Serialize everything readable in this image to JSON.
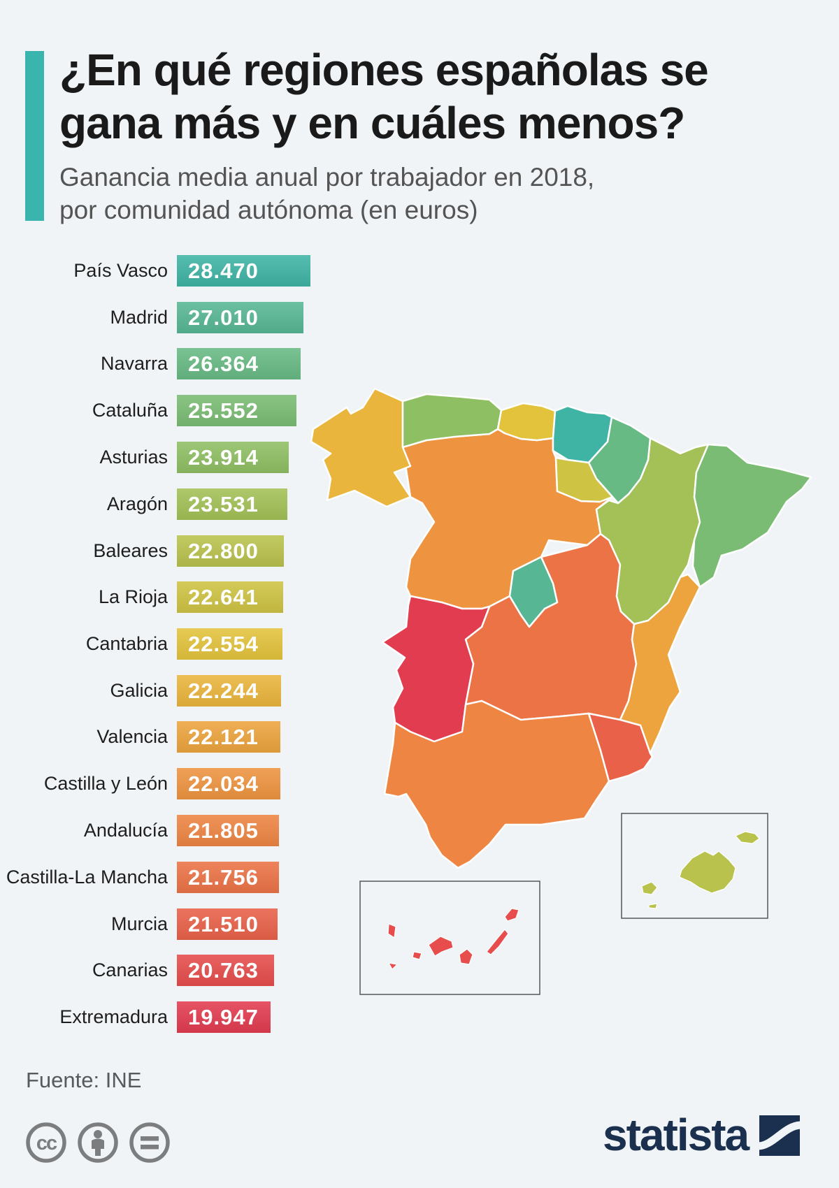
{
  "header": {
    "accent_color": "#39b5ad",
    "title_line1": "¿En qué regiones españolas se",
    "title_line2": "gana más y en cuáles menos?",
    "subtitle_line1": "Ganancia media anual por trabajador en 2018,",
    "subtitle_line2": "por comunidad autónoma (en euros)"
  },
  "chart_data": {
    "type": "bar",
    "orientation": "horizontal",
    "title": "¿En qué regiones españolas se gana más y en cuáles menos?",
    "subtitle": "Ganancia media anual por trabajador en 2018, por comunidad autónoma (en euros)",
    "unit": "euros",
    "year": "2018",
    "categories": [
      "País Vasco",
      "Madrid",
      "Navarra",
      "Cataluña",
      "Asturias",
      "Aragón",
      "Baleares",
      "La Rioja",
      "Cantabria",
      "Galicia",
      "Valencia",
      "Castilla y León",
      "Andalucía",
      "Castilla-La Mancha",
      "Murcia",
      "Canarias",
      "Extremadura"
    ],
    "values": [
      28470,
      27010,
      26364,
      25552,
      23914,
      23531,
      22800,
      22641,
      22554,
      22244,
      22121,
      22034,
      21805,
      21756,
      21510,
      20763,
      19947
    ],
    "display_values": [
      "28.470",
      "27.010",
      "26.364",
      "25.552",
      "23.914",
      "23.531",
      "22.800",
      "22.641",
      "22.554",
      "22.244",
      "22.121",
      "22.034",
      "21.805",
      "21.756",
      "21.510",
      "20.763",
      "19.947"
    ],
    "colors": [
      "#3fb4a5",
      "#57b794",
      "#68ba84",
      "#7abc73",
      "#8fbf63",
      "#a3c156",
      "#b9c24d",
      "#cec343",
      "#e3c33c",
      "#eab53c",
      "#eda43e",
      "#ee9440",
      "#ee8543",
      "#ec7346",
      "#e96149",
      "#e64d4c",
      "#e23c50"
    ],
    "legend": "none",
    "map_note": "choropleth map of Spain colored with same scale; insets for Baleares and Canarias"
  },
  "footer": {
    "source": "Fuente: INE",
    "icon_color": "#7b7d7e",
    "cc_glyph": "cc",
    "license_icons": [
      "cc-icon",
      "attribution-icon",
      "no-derivatives-icon"
    ],
    "brand": "statista",
    "brand_color": "#1b2f4e"
  }
}
